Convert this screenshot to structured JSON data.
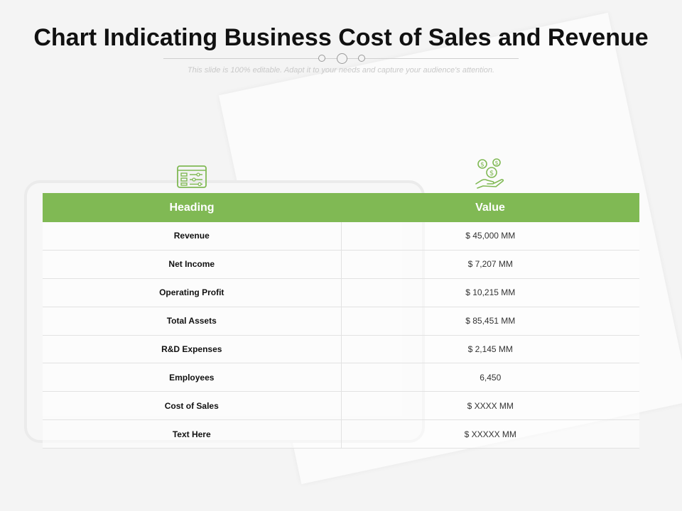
{
  "header": {
    "title": "Chart Indicating Business Cost of Sales and Revenue",
    "subtitle": "This slide is 100% editable. Adapt it to your needs and capture your audience's attention."
  },
  "icons": {
    "left": "list-settings-icon",
    "right": "money-hand-icon",
    "accent_color": "#80b954"
  },
  "table": {
    "headers": [
      "Heading",
      "Value"
    ],
    "rows": [
      {
        "label": "Revenue",
        "value": "$ 45,000 MM"
      },
      {
        "label": "Net Income",
        "value": "$ 7,207 MM"
      },
      {
        "label": "Operating Profit",
        "value": "$ 10,215 MM"
      },
      {
        "label": "Total Assets",
        "value": "$ 85,451 MM"
      },
      {
        "label": "R&D Expenses",
        "value": "$ 2,145 MM"
      },
      {
        "label": "Employees",
        "value": "6,450"
      },
      {
        "label": "Cost of Sales",
        "value": "$ XXXX MM"
      },
      {
        "label": "Text Here",
        "value": "$ XXXXX MM"
      }
    ]
  }
}
